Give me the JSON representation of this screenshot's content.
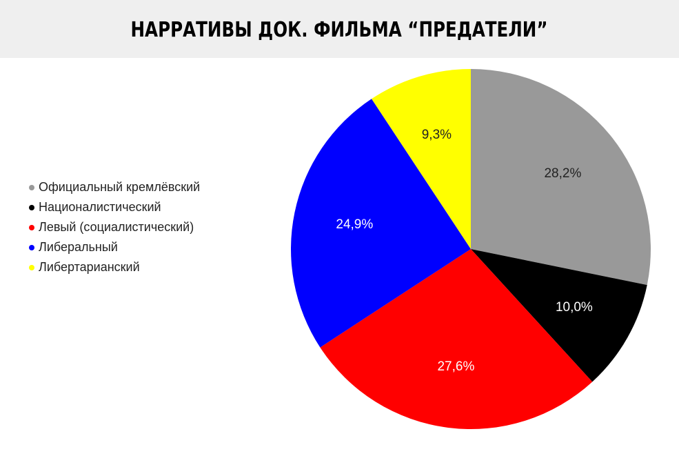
{
  "chart_data": {
    "type": "pie",
    "title": "НАРРАТИВЫ ДОК. ФИЛЬМА “ПРЕДАТЕЛИ”",
    "categories": [
      "Официальный кремлёвский",
      "Националистический",
      "Левый (социалистический)",
      "Либеральный",
      "Либертарианский"
    ],
    "values": [
      28.2,
      10.0,
      27.6,
      24.9,
      9.3
    ],
    "value_labels": [
      "28,2%",
      "10,0%",
      "27,6%",
      "24,9%",
      "9,3%"
    ],
    "colors": [
      "#999999",
      "#000000",
      "#ff0000",
      "#0000ff",
      "#ffff00"
    ],
    "legend": "left"
  }
}
